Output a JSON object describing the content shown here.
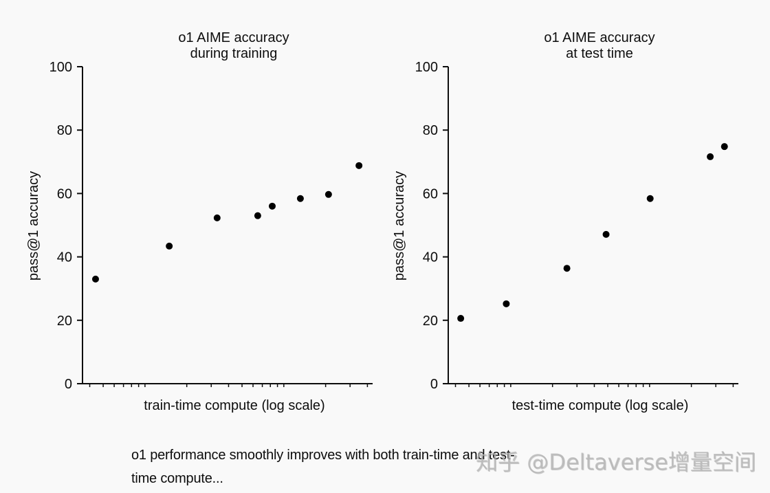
{
  "chart_data": [
    {
      "type": "scatter",
      "title": "o1 AIME accuracy\nduring training",
      "title_lines": [
        "o1 AIME accuracy",
        "during training"
      ],
      "xlabel": "train-time compute (log scale)",
      "ylabel": "pass@1 accuracy",
      "ylim": [
        0,
        100
      ],
      "yticks": [
        0,
        20,
        40,
        60,
        80,
        100
      ],
      "x_scale": "log",
      "grid": false,
      "x_rel": [
        0.045,
        0.299,
        0.464,
        0.604,
        0.654,
        0.751,
        0.848,
        0.953
      ],
      "values": [
        33.0,
        43.4,
        52.3,
        53.0,
        56.0,
        58.4,
        59.7,
        68.8
      ]
    },
    {
      "type": "scatter",
      "title": "o1 AIME accuracy\nat test time",
      "title_lines": [
        "o1 AIME accuracy",
        "at test time"
      ],
      "xlabel": "test-time compute (log scale)",
      "ylabel": "pass@1 accuracy",
      "ylim": [
        0,
        100
      ],
      "yticks": [
        0,
        20,
        40,
        60,
        80,
        100
      ],
      "x_scale": "log",
      "grid": false,
      "x_rel": [
        0.043,
        0.2,
        0.409,
        0.544,
        0.696,
        0.903,
        0.952
      ],
      "values": [
        20.6,
        25.2,
        36.4,
        47.1,
        58.4,
        71.6,
        74.8
      ]
    }
  ],
  "caption": {
    "line1": "o1 performance smoothly improves with both train-time and test-",
    "line2": "time compute..."
  },
  "watermark": "知乎 @Deltaverse增量空间",
  "colors": {
    "background": "#f9f9f9",
    "ink": "#0d0d0d",
    "watermark": "#b4b4b4"
  }
}
